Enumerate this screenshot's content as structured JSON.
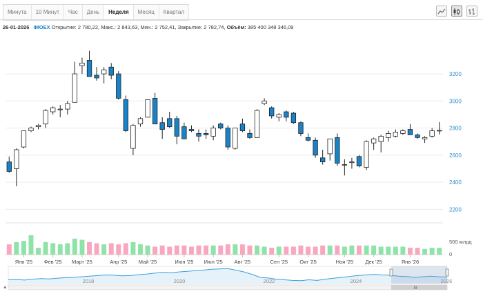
{
  "tabs": [
    {
      "label": "Минута",
      "active": false
    },
    {
      "label": "10 Минут",
      "active": false
    },
    {
      "label": "Час",
      "active": false
    },
    {
      "label": "День",
      "active": false
    },
    {
      "label": "Неделя",
      "active": true
    },
    {
      "label": "Месяц",
      "active": false
    },
    {
      "label": "Квартал",
      "active": false
    }
  ],
  "toolbar": {
    "icons": [
      "line-chart-icon",
      "candlestick-icon",
      "bar-chart-icon"
    ]
  },
  "info": {
    "date": "26-01-2026",
    "ticker": "IMOEX",
    "open_label": "Открытие:",
    "open": "2 780,22",
    "high_label": "Макс.:",
    "high": "2 843,63",
    "low_label": "Мин.:",
    "low": "2 752,41",
    "close_label": "Закрытие:",
    "close": "2 782,74",
    "volume_label": "Объём:",
    "volume": "385 400 348 346,09"
  },
  "colors": {
    "up": "#ffffff",
    "down": "#1a82c7",
    "vol_up": "#90e3a8",
    "vol_down": "#f9a7bf",
    "navigator": "#3a9fd8"
  },
  "chart_data": {
    "type": "candlestick",
    "ylim": [
      2100,
      3450
    ],
    "yticks": [
      2200,
      2400,
      2600,
      2800,
      3000,
      3200
    ],
    "volume_label": "500 млрд",
    "volume_zero_label": "0",
    "xticks": [
      {
        "i": 2,
        "label": "Янв '25"
      },
      {
        "i": 6,
        "label": "Фев '25"
      },
      {
        "i": 10,
        "label": "Март '25"
      },
      {
        "i": 15,
        "label": "Апр '25"
      },
      {
        "i": 19,
        "label": "Май '25"
      },
      {
        "i": 24,
        "label": "Июн '25"
      },
      {
        "i": 28,
        "label": "Июл '25"
      },
      {
        "i": 32,
        "label": "Авг '25"
      },
      {
        "i": 37,
        "label": "Сен '25"
      },
      {
        "i": 41,
        "label": "Окт '25"
      },
      {
        "i": 46,
        "label": "Ноя '25"
      },
      {
        "i": 50,
        "label": "Дек '25"
      },
      {
        "i": 55,
        "label": "Янв '26"
      }
    ],
    "candles": [
      [
        2550,
        2590,
        2470,
        2480
      ],
      [
        2500,
        2650,
        2370,
        2640
      ],
      [
        2660,
        2780,
        2650,
        2780
      ],
      [
        2780,
        2810,
        2770,
        2800
      ],
      [
        2810,
        2830,
        2790,
        2820
      ],
      [
        2830,
        2940,
        2800,
        2930
      ],
      [
        2920,
        2960,
        2900,
        2950
      ],
      [
        2940,
        2970,
        2880,
        2940
      ],
      [
        2940,
        3000,
        2900,
        2980
      ],
      [
        2990,
        3290,
        2990,
        3200
      ],
      [
        3260,
        3320,
        3200,
        3280
      ],
      [
        3300,
        3370,
        3180,
        3180
      ],
      [
        3190,
        3250,
        3150,
        3170
      ],
      [
        3200,
        3250,
        3130,
        3230
      ],
      [
        3250,
        3280,
        3160,
        3190
      ],
      [
        3200,
        3220,
        3010,
        3020
      ],
      [
        3010,
        3040,
        2770,
        2780
      ],
      [
        2650,
        2830,
        2600,
        2820
      ],
      [
        2830,
        2880,
        2810,
        2870
      ],
      [
        2880,
        3010,
        2880,
        3010
      ],
      [
        3020,
        3060,
        2830,
        2830
      ],
      [
        2840,
        2880,
        2720,
        2790
      ],
      [
        2870,
        2920,
        2800,
        2810
      ],
      [
        2870,
        2890,
        2680,
        2740
      ],
      [
        2810,
        2840,
        2720,
        2720
      ],
      [
        2790,
        2820,
        2770,
        2780
      ],
      [
        2760,
        2790,
        2700,
        2740
      ],
      [
        2760,
        2790,
        2720,
        2750
      ],
      [
        2740,
        2820,
        2710,
        2800
      ],
      [
        2830,
        2840,
        2790,
        2800
      ],
      [
        2800,
        2820,
        2640,
        2660
      ],
      [
        2650,
        2800,
        2640,
        2800
      ],
      [
        2830,
        2870,
        2770,
        2780
      ],
      [
        2760,
        2790,
        2720,
        2730
      ],
      [
        2730,
        2940,
        2730,
        2930
      ],
      [
        2980,
        3020,
        2970,
        3000
      ],
      [
        2950,
        2960,
        2870,
        2890
      ],
      [
        2880,
        2910,
        2850,
        2900
      ],
      [
        2920,
        2930,
        2850,
        2880
      ],
      [
        2910,
        2920,
        2830,
        2840
      ],
      [
        2840,
        2850,
        2740,
        2760
      ],
      [
        2730,
        2760,
        2700,
        2710
      ],
      [
        2710,
        2730,
        2580,
        2600
      ],
      [
        2580,
        2640,
        2530,
        2550
      ],
      [
        2610,
        2720,
        2560,
        2720
      ],
      [
        2730,
        2760,
        2520,
        2540
      ],
      [
        2530,
        2570,
        2450,
        2530
      ],
      [
        2550,
        2580,
        2500,
        2550
      ],
      [
        2590,
        2600,
        2510,
        2520
      ],
      [
        2510,
        2710,
        2490,
        2700
      ],
      [
        2690,
        2730,
        2640,
        2720
      ],
      [
        2700,
        2750,
        2620,
        2740
      ],
      [
        2730,
        2780,
        2700,
        2760
      ],
      [
        2740,
        2790,
        2730,
        2770
      ],
      [
        2760,
        2790,
        2750,
        2780
      ],
      [
        2790,
        2830,
        2750,
        2750
      ],
      [
        2750,
        2760,
        2720,
        2730
      ],
      [
        2720,
        2740,
        2690,
        2730
      ],
      [
        2740,
        2800,
        2730,
        2780
      ],
      [
        2780,
        2844,
        2752,
        2783
      ]
    ],
    "volumes": [
      0.45,
      0.55,
      0.6,
      0.85,
      0.3,
      0.55,
      0.5,
      0.45,
      0.5,
      0.7,
      0.65,
      0.55,
      0.5,
      0.45,
      0.5,
      0.45,
      0.5,
      0.55,
      0.45,
      0.4,
      0.35,
      0.4,
      0.35,
      0.4,
      0.4,
      0.35,
      0.4,
      0.4,
      0.4,
      0.4,
      0.45,
      0.45,
      0.45,
      0.4,
      0.4,
      0.35,
      0.3,
      0.35,
      0.35,
      0.35,
      0.4,
      0.35,
      0.35,
      0.4,
      0.4,
      0.4,
      0.35,
      0.4,
      0.4,
      0.4,
      0.4,
      0.35,
      0.35,
      0.35,
      0.35,
      0.3,
      0.3,
      0.25,
      0.3,
      0.3
    ],
    "navigator": {
      "years": [
        "2018",
        "2020",
        "2022",
        "2024",
        "2026"
      ],
      "handle_label": "III",
      "values": [
        2300,
        2350,
        2250,
        2400,
        2500,
        2450,
        2550,
        2650,
        2700,
        2800,
        2900,
        3000,
        3100,
        3050,
        2950,
        3000,
        3150,
        3250,
        3400,
        3550,
        3450,
        3600,
        3700,
        3800,
        3900,
        4050,
        4100,
        4150,
        3900,
        3600,
        3200,
        2700,
        2600,
        2400,
        2300,
        2200,
        2150,
        2300,
        2200,
        2400,
        2550,
        2700,
        2850,
        3000,
        3100,
        3200,
        3100,
        3050,
        2900,
        2850,
        2700,
        2800,
        2900,
        2800,
        2750
      ]
    }
  }
}
